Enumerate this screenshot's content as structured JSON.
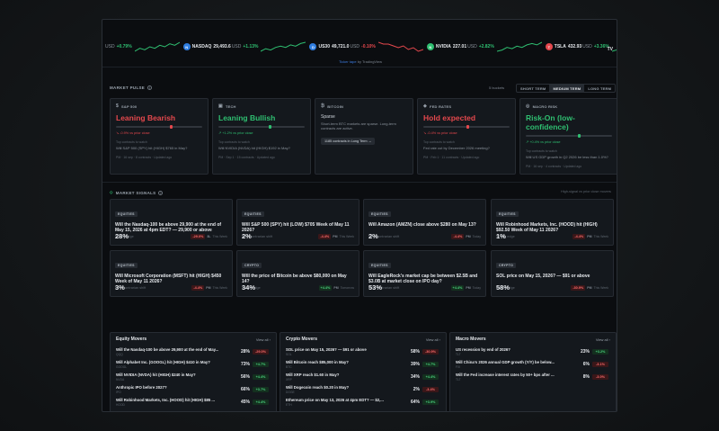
{
  "ticker": {
    "items": [
      {
        "symbol": "",
        "price": "",
        "unit": "USD",
        "change": "+0.79%",
        "dir": "up",
        "logo_color": "#2fbf71",
        "logo": "",
        "spark": [
          3,
          5,
          4,
          6,
          5,
          7,
          6,
          8,
          7,
          9
        ]
      },
      {
        "symbol": "NASDAQ",
        "price": "29,493.6",
        "unit": "USD",
        "change": "+1.13%",
        "dir": "up",
        "logo_color": "#2f7de1",
        "logo": "N",
        "spark": [
          2,
          4,
          3,
          5,
          6,
          5,
          7,
          6,
          8,
          9
        ]
      },
      {
        "symbol": "US30",
        "price": "49,721.0",
        "unit": "USD",
        "change": "-0.10%",
        "dir": "down",
        "logo_color": "#2f7de1",
        "logo": "D",
        "spark": [
          9,
          8,
          8,
          7,
          6,
          7,
          5,
          6,
          4,
          5
        ]
      },
      {
        "symbol": "NVIDIA",
        "price": "227.01",
        "unit": "USD",
        "change": "+2.82%",
        "dir": "up",
        "logo_color": "#2fbf71",
        "logo": "N",
        "spark": [
          2,
          3,
          5,
          4,
          6,
          5,
          7,
          8,
          7,
          9
        ]
      },
      {
        "symbol": "TSLA",
        "price": "432.93",
        "unit": "USD",
        "change": "+3.36%",
        "dir": "up",
        "logo_color": "#e5484d",
        "logo": "T",
        "spark": [
          3,
          4,
          3,
          5,
          6,
          5,
          7,
          6,
          8,
          9
        ]
      }
    ],
    "badge": "TV",
    "credit_link": "Ticker tape",
    "credit_rest": " by TradingView"
  },
  "pulse": {
    "title": "MARKET PULSE",
    "count": "5 buckets",
    "tabs": [
      "SHORT TERM",
      "MEDIUM TERM",
      "LONG TERM"
    ],
    "active_tab": 1,
    "cards": [
      {
        "label": "S&P 500",
        "icon": "$",
        "headline": "Leaning Bearish",
        "color": "#e5484d",
        "bar": 0.62,
        "delta": "↘ -0.9% vs prior close",
        "sub": "Top contracts to watch",
        "desc": "Will S&P 500 (SPY) hit (HIGH) $765 in May?",
        "foot": "PM · 16 sep · 8 contracts · Updated ago"
      },
      {
        "label": "TECH",
        "icon": "▣",
        "headline": "Leaning Bullish",
        "color": "#2fbf71",
        "bar": 0.58,
        "delta": "↗ +1.2% vs prior close",
        "sub": "Top contracts to watch",
        "desc": "Will NVIDIA (NVDA) hit (HIGH) $192 in May?",
        "foot": "PM · Sep 1 · 15 contracts · Updated ago"
      },
      {
        "label": "BITCOIN",
        "icon": "₿",
        "headline": "",
        "color": "#cfd5dc",
        "bar": null,
        "delta": "",
        "sparse": "Sparse",
        "desc": "Short-term BTC markets are sparse. Long-term contracts are active.",
        "pill": "1185 contracts in Long Term →",
        "sub": "",
        "foot": ""
      },
      {
        "label": "FED RATES",
        "icon": "◈",
        "headline": "Hold expected",
        "color": "#e5484d",
        "bar": 0.5,
        "delta": "↘ -0.4% vs prior close",
        "sub": "Top contracts to watch",
        "desc": "Fed rate cut by December 2026 meeting?",
        "foot": "PM · Feb 1 · 11 contracts · Updated ago"
      },
      {
        "label": "MACRO RISK",
        "icon": "◎",
        "headline": "Risk-On (low-confidence)",
        "color": "#2fbf71",
        "bar": 0.6,
        "delta": "↗ +0.4% vs prior close",
        "sub": "Top contracts to watch",
        "desc": "Will US GDP growth in Q2 2026 be less than 1.0%?",
        "foot": "PM · 16 sep · 4 contracts · Updated ago"
      }
    ]
  },
  "signals": {
    "title": "MARKET SIGNALS",
    "note": "High-signal vs prior close movers",
    "cards": [
      {
        "tag": "EQUITIES",
        "question": "Will the Nasdaq-100 be above 29,900 at the end of May 15, 2026 at 4pm EDT? — 29,900 or above",
        "note": "Strong edge",
        "pct": "28%",
        "change": "-29.0%",
        "dir": "neg",
        "tf": "8L",
        "tfl": "This Week"
      },
      {
        "tag": "EQUITIES",
        "question": "Will S&P 500 (SPY) hit (LOW) $705 Week of May 11 2026?",
        "note": "Near contrarian shift",
        "pct": "2%",
        "change": "-4.4%",
        "dir": "neg",
        "tf": "PM",
        "tfl": "This Week"
      },
      {
        "tag": "EQUITIES",
        "question": "Will Amazon (AMZN) close above $280 on May 13?",
        "note": "Near contrarian shift",
        "pct": "2%",
        "change": "-4.4%",
        "dir": "neg",
        "tf": "PM",
        "tfl": "Today"
      },
      {
        "tag": "EQUITIES",
        "question": "Will Robinhood Markets, Inc. (HOOD) hit (HIGH) $92.50 Week of May 11 2026?",
        "note": "Strong edge",
        "pct": "1%",
        "change": "-4.4%",
        "dir": "neg",
        "tf": "PM",
        "tfl": "This Week"
      },
      {
        "tag": "EQUITIES",
        "question": "Will Microsoft Corporation (MSFT) hit (HIGH) $450 Week of May 11 2026?",
        "note": "Near contrarian shift",
        "pct": "3%",
        "change": "-4.4%",
        "dir": "neg",
        "tf": "PM",
        "tfl": "This Week"
      },
      {
        "tag": "CRYPTO",
        "question": "Will the price of Bitcoin be above $80,000 on May 14?",
        "note": "Strong edge",
        "pct": "34%",
        "change": "+4.4%",
        "dir": "pos",
        "tf": "PM",
        "tfl": "Tomorrow"
      },
      {
        "tag": "EQUITIES",
        "question": "Will EagleRock's market cap be between $2.5B and $3.0B at market close on IPO day?",
        "note": "Near contrarian shift",
        "pct": "53%",
        "change": "+4.4%",
        "dir": "pos",
        "tf": "PM",
        "tfl": "Today"
      },
      {
        "tag": "CRYPTO",
        "question": "SOL price on May 15, 2026? — $91 or above",
        "note": "Strong edge",
        "pct": "58%",
        "change": "-30.9%",
        "dir": "neg",
        "tf": "PM",
        "tfl": "This Week"
      }
    ]
  },
  "movers": [
    {
      "title": "Equity Movers",
      "view_all": "View all ›",
      "rows": [
        {
          "q": "Will the Nasdaq-100 be above 29,900 at the end of May...",
          "sub": "QQQ",
          "pct": "28%",
          "change": "-29.0%",
          "dir": "neg"
        },
        {
          "q": "Will Alphabet Inc. (GOOGL) hit (HIGH) $410 in May?",
          "sub": "GOOGL",
          "pct": "73%",
          "change": "+4.7%",
          "dir": "pos"
        },
        {
          "q": "Will NVIDIA (NVDA) hit (HIGH) $240 in May?",
          "sub": "NVDA",
          "pct": "56%",
          "change": "+4.4%",
          "dir": "pos"
        },
        {
          "q": "Anthropic IPO before 2027?",
          "sub": "IPO",
          "pct": "66%",
          "change": "+3.7%",
          "dir": "pos"
        },
        {
          "q": "Will Robinhood Markets, Inc. (HOOD) hit (HIGH) $85 ...",
          "sub": "HOOD",
          "pct": "45%",
          "change": "+4.4%",
          "dir": "pos"
        }
      ]
    },
    {
      "title": "Crypto Movers",
      "view_all": "View all ›",
      "rows": [
        {
          "q": "SOL price on May 15, 2026? — $91 or above",
          "sub": "SOL",
          "pct": "58%",
          "change": "-30.9%",
          "dir": "neg"
        },
        {
          "q": "Will Bitcoin reach $85,000 in May?",
          "sub": "BTC",
          "pct": "39%",
          "change": "+4.7%",
          "dir": "pos"
        },
        {
          "q": "Will XRP reach $1.60 in May?",
          "sub": "XRP",
          "pct": "34%",
          "change": "+4.4%",
          "dir": "pos"
        },
        {
          "q": "Will Dogecoin reach $0.20 in May?",
          "sub": "DOGE",
          "pct": "2%",
          "change": "-3.4%",
          "dir": "neg"
        },
        {
          "q": "Ethereum price on May 13, 2026 at 4pm EDT? — $2,...",
          "sub": "ETH",
          "pct": "64%",
          "change": "+3.9%",
          "dir": "pos"
        }
      ]
    },
    {
      "title": "Macro Movers",
      "view_all": "View all ›",
      "rows": [
        {
          "q": "US recession by end of 2026?",
          "sub": "TLT",
          "pct": "23%",
          "change": "+3.2%",
          "dir": "pos"
        },
        {
          "q": "Will China's 2026 annual GDP growth (Y/Y) be below...",
          "sub": "FXI",
          "pct": "6%",
          "change": "-3.1%",
          "dir": "neg"
        },
        {
          "q": "Will the Fed increase interest rates by 50+ bps after ...",
          "sub": "TLT",
          "pct": "8%",
          "change": "-3.0%",
          "dir": "neg"
        }
      ]
    }
  ]
}
